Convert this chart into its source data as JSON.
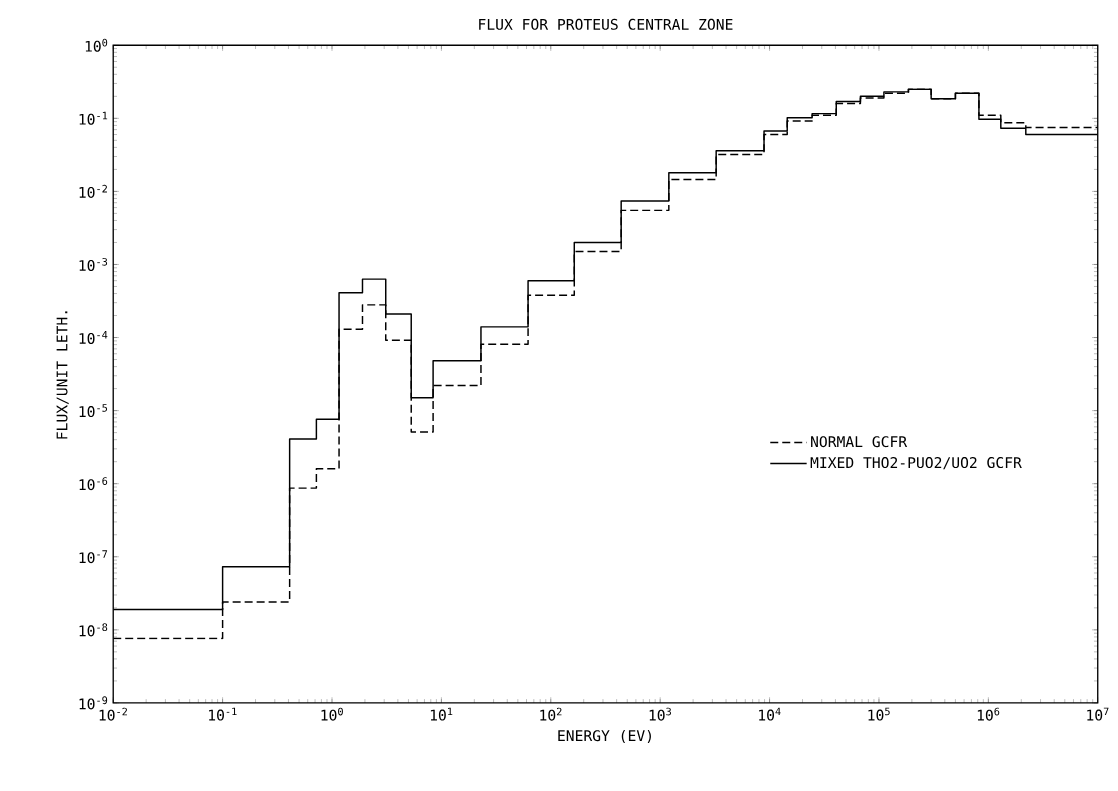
{
  "chart_data": {
    "type": "step",
    "title": "FLUX FOR PROTEUS CENTRAL ZONE",
    "xlabel": "ENERGY (EV)",
    "ylabel": "FLUX/UNIT LETH.",
    "log": "xy",
    "legend": "right",
    "marker": "none",
    "x": [
      0.01,
      0.1,
      0.41,
      0.72,
      1.16,
      1.9,
      3.1,
      5.3,
      8.4,
      23,
      62,
      164,
      440,
      1200,
      3250,
      8900,
      14500,
      24500,
      40700,
      67700,
      111000,
      186000,
      300000,
      500000,
      820000,
      1300000,
      2200000,
      10000000
    ],
    "series": [
      {
        "name": "NORMAL GCFR",
        "color": "#000000",
        "line_style": "dashed",
        "values": [
          7.6e-09,
          2.4e-08,
          8.7e-07,
          1.6e-06,
          0.00013,
          0.00028,
          9.2e-05,
          5.1e-06,
          2.2e-05,
          8.1e-05,
          0.00038,
          0.0015,
          0.0055,
          0.0145,
          0.032,
          0.06,
          0.092,
          0.11,
          0.16,
          0.19,
          0.22,
          0.25,
          0.185,
          0.22,
          0.11,
          0.087,
          0.075,
          0.075
        ]
      },
      {
        "name": "MIXED THO2-PUO2/UO2 GCFR",
        "color": "#000000",
        "line_style": "solid",
        "values": [
          1.9e-08,
          7.3e-08,
          4.1e-06,
          7.6e-06,
          0.00041,
          0.00063,
          0.00021,
          1.5e-05,
          4.8e-05,
          0.00014,
          0.0006,
          0.002,
          0.0074,
          0.018,
          0.036,
          0.067,
          0.102,
          0.116,
          0.17,
          0.2,
          0.23,
          0.25,
          0.185,
          0.22,
          0.097,
          0.073,
          0.06,
          0.06
        ]
      }
    ],
    "xlim": [
      0.01,
      10000000
    ],
    "ylim": [
      1e-09,
      1
    ],
    "xticks": [
      {
        "value": 0.01,
        "label": "10$^{-2}$"
      },
      {
        "value": 0.1,
        "label": "10$^{-1}$"
      },
      {
        "value": 1,
        "label": "10$^{0}$"
      },
      {
        "value": 10,
        "label": "10$^{1}$"
      },
      {
        "value": 100,
        "label": "10$^{2}$"
      },
      {
        "value": 1000,
        "label": "10$^{3}$"
      },
      {
        "value": 10000,
        "label": "10$^{4}$"
      },
      {
        "value": 100000,
        "label": "10$^{5}$"
      },
      {
        "value": 1000000,
        "label": "10$^{6}$"
      },
      {
        "value": 10000000,
        "label": "10$^{7}$"
      }
    ],
    "yticks": [
      {
        "value": 1e-09,
        "label": "10$^{-9}$"
      },
      {
        "value": 1e-08,
        "label": "10$^{-8}$"
      },
      {
        "value": 1e-07,
        "label": "10$^{-7}$"
      },
      {
        "value": 1e-06,
        "label": "10$^{-6}$"
      },
      {
        "value": 1e-05,
        "label": "10$^{-5}$"
      },
      {
        "value": 0.0001,
        "label": "10$^{-4}$"
      },
      {
        "value": 0.001,
        "label": "10$^{-3}$"
      },
      {
        "value": 0.01,
        "label": "10$^{-2}$"
      },
      {
        "value": 0.1,
        "label": "10$^{-1}$"
      },
      {
        "value": 1,
        "label": "10$^{0}$"
      }
    ]
  }
}
